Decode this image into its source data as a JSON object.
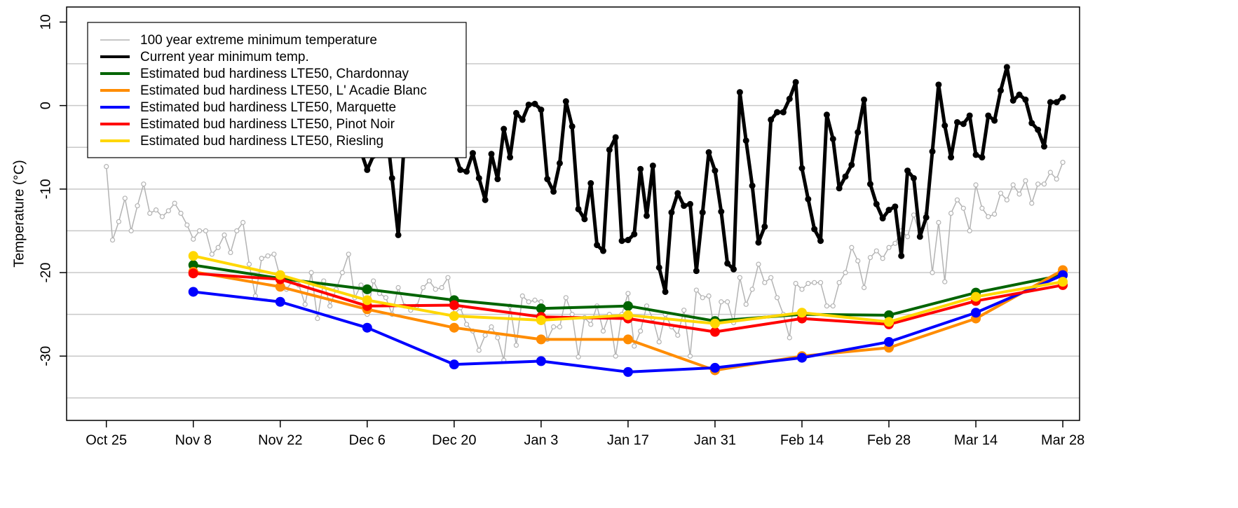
{
  "chart_data": {
    "type": "line",
    "y_label": "Temperature (°C)",
    "xlim": [
      -6.4,
      156.7
    ],
    "xticks": [
      {
        "value": 0,
        "label": "Oct 25"
      },
      {
        "value": 14,
        "label": "Nov 8"
      },
      {
        "value": 28,
        "label": "Nov 22"
      },
      {
        "value": 42,
        "label": "Dec 6"
      },
      {
        "value": 56,
        "label": "Dec 20"
      },
      {
        "value": 70,
        "label": "Jan 3"
      },
      {
        "value": 84,
        "label": "Jan 17"
      },
      {
        "value": 98,
        "label": "Jan 31"
      },
      {
        "value": 112,
        "label": "Feb 14"
      },
      {
        "value": 126,
        "label": "Feb 28"
      },
      {
        "value": 140,
        "label": "Mar 14"
      },
      {
        "value": 154,
        "label": "Mar 28"
      }
    ],
    "ylim": [
      -37.7,
      11.8
    ],
    "yticks": [
      10,
      0,
      -10,
      -20,
      -30
    ],
    "grid": true,
    "ygrid": [
      5,
      0,
      -5,
      -10,
      -15,
      -20,
      -25,
      -30,
      -35
    ],
    "legend": "topleft",
    "series": [
      {
        "name": "100 year extreme minimum temperature",
        "color": "#b3b3b3",
        "x": [
          0,
          1,
          2,
          3,
          4,
          5,
          6,
          7,
          8,
          9,
          10,
          11,
          12,
          13,
          14,
          15,
          16,
          17,
          18,
          19,
          20,
          21,
          22,
          23,
          24,
          25,
          26,
          27,
          28,
          29,
          30,
          31,
          32,
          33,
          34,
          35,
          36,
          37,
          38,
          39,
          40,
          41,
          42,
          43,
          44,
          45,
          46,
          47,
          48,
          49,
          50,
          51,
          52,
          53,
          54,
          55,
          56,
          57,
          58,
          59,
          60,
          61,
          62,
          63,
          64,
          65,
          66,
          67,
          68,
          69,
          70,
          71,
          72,
          73,
          74,
          75,
          76,
          77,
          78,
          79,
          80,
          81,
          82,
          83,
          84,
          85,
          86,
          87,
          88,
          89,
          90,
          91,
          92,
          93,
          94,
          95,
          96,
          97,
          98,
          99,
          100,
          101,
          102,
          103,
          104,
          105,
          106,
          107,
          108,
          109,
          110,
          111,
          112,
          113,
          114,
          115,
          116,
          117,
          118,
          119,
          120,
          121,
          122,
          123,
          124,
          125,
          126,
          127,
          128,
          129,
          130,
          131,
          132,
          133,
          134,
          135,
          136,
          137,
          138,
          139,
          140,
          141,
          142,
          143,
          144,
          145,
          146,
          147,
          148,
          149,
          150,
          151,
          152,
          153,
          154
        ],
        "values": [
          -7.3,
          -16.1,
          -13.9,
          -11.1,
          -15,
          -12,
          -9.4,
          -12.9,
          -12.5,
          -13.3,
          -12.6,
          -11.7,
          -12.9,
          -14.3,
          -16,
          -15,
          -15,
          -17.8,
          -17,
          -15.5,
          -17.6,
          -15,
          -14,
          -19,
          -22.8,
          -18.3,
          -18,
          -17.8,
          -20.6,
          -22,
          -21,
          -21.5,
          -23.8,
          -20,
          -25.5,
          -21,
          -24,
          -22,
          -20,
          -17.8,
          -23,
          -21.5,
          -25,
          -21,
          -22.5,
          -23,
          -25,
          -21.8,
          -24,
          -24.5,
          -24,
          -21.8,
          -21,
          -22,
          -21.8,
          -20.6,
          -25,
          -24.2,
          -26.2,
          -27,
          -29.3,
          -27.5,
          -26.5,
          -27.8,
          -30.5,
          -24,
          -28.7,
          -22.8,
          -23.5,
          -23.3,
          -23.5,
          -28,
          -26.5,
          -26.5,
          -23,
          -25,
          -30.1,
          -25.4,
          -26.2,
          -24,
          -27,
          -25,
          -30,
          -25,
          -22.5,
          -28.8,
          -27,
          -24,
          -25.5,
          -28.3,
          -25,
          -26.5,
          -27.5,
          -24.5,
          -30,
          -22.1,
          -23,
          -22.8,
          -27.3,
          -23.5,
          -23.5,
          -26,
          -20.6,
          -23.8,
          -22,
          -19,
          -21.2,
          -20.6,
          -23,
          -25,
          -27.8,
          -21.3,
          -22,
          -21.3,
          -21.2,
          -21.2,
          -24,
          -24,
          -21.2,
          -20,
          -17,
          -18.6,
          -21.8,
          -18.2,
          -17.4,
          -18.3,
          -17,
          -16.5,
          -15,
          -15.7,
          -13.1,
          -15.5,
          -13,
          -20,
          -14,
          -21.1,
          -12.9,
          -11.3,
          -12.3,
          -15,
          -9.5,
          -12.3,
          -13.3,
          -13,
          -10.5,
          -11.3,
          -9.5,
          -10.6,
          -9,
          -11.7,
          -9.4,
          -9.4,
          -8,
          -8.8,
          -6.8
        ]
      },
      {
        "name": "Current year minimum temp.",
        "color": "#000000",
        "x": [
          41,
          42,
          43,
          44,
          45,
          46,
          47,
          48,
          49,
          50,
          51,
          52,
          53,
          54,
          55,
          56,
          57,
          58,
          59,
          60,
          61,
          62,
          63,
          64,
          65,
          66,
          67,
          68,
          69,
          70,
          71,
          72,
          73,
          74,
          75,
          76,
          77,
          78,
          79,
          80,
          81,
          82,
          83,
          84,
          85,
          86,
          87,
          88,
          89,
          90,
          91,
          92,
          93,
          94,
          95,
          96,
          97,
          98,
          99,
          100,
          101,
          102,
          103,
          104,
          105,
          106,
          107,
          108,
          109,
          110,
          111,
          112,
          113,
          114,
          115,
          116,
          117,
          118,
          119,
          120,
          121,
          122,
          123,
          124,
          125,
          126,
          127,
          128,
          129,
          130,
          131,
          132,
          133,
          134,
          135,
          136,
          137,
          138,
          139,
          140,
          141,
          142,
          143,
          144,
          145,
          146,
          147,
          148,
          149,
          150,
          151,
          152,
          153,
          154
        ],
        "values": [
          -5.5,
          -7.7,
          -6,
          -4.5,
          -2,
          -8.7,
          -15.5,
          -4,
          -1,
          -1,
          -2,
          -1,
          -2,
          -3,
          -4,
          -5.5,
          -7.7,
          -7.9,
          -5.7,
          -8.7,
          -11.3,
          -5.8,
          -8.8,
          -2.8,
          -6.2,
          -0.9,
          -1.7,
          0.1,
          0.2,
          -0.5,
          -8.8,
          -10.3,
          -6.9,
          0.5,
          -2.5,
          -12.4,
          -13.6,
          -9.3,
          -16.7,
          -17.4,
          -5.3,
          -3.8,
          -16.2,
          -16.1,
          -15.4,
          -7.6,
          -13.2,
          -7.2,
          -19.4,
          -22.3,
          -12.8,
          -10.5,
          -12,
          -11.8,
          -19.8,
          -12.8,
          -5.6,
          -7.8,
          -12.7,
          -18.9,
          -19.6,
          1.6,
          -4.2,
          -9.6,
          -16.4,
          -14.5,
          -1.7,
          -0.8,
          -0.8,
          0.8,
          2.8,
          -7.5,
          -11.2,
          -14.8,
          -16.2,
          -1.1,
          -4,
          -9.9,
          -8.5,
          -7.1,
          -3.2,
          0.7,
          -9.4,
          -11.8,
          -13.5,
          -12.5,
          -12.1,
          -18,
          -7.8,
          -8.7,
          -15.7,
          -13.4,
          -5.5,
          2.5,
          -2.4,
          -6.2,
          -2,
          -2.2,
          -1.2,
          -5.9,
          -6.2,
          -1.2,
          -1.8,
          1.8,
          4.6,
          0.6,
          1.3,
          0.7,
          -2.1,
          -2.9,
          -4.9,
          0.4,
          0.4,
          1
        ]
      },
      {
        "name": "Estimated bud hardiness LTE50, Chardonnay",
        "color": "#006400",
        "x": [
          14,
          28,
          42,
          56,
          70,
          84,
          98,
          112,
          126,
          140,
          154
        ],
        "values": [
          -19.1,
          -20.7,
          -22.0,
          -23.3,
          -24.3,
          -24.0,
          -25.8,
          -25.0,
          -25.1,
          -22.4,
          -20.3
        ]
      },
      {
        "name": "Estimated bud hardiness LTE50, L' Acadie Blanc",
        "color": "#ff8c00",
        "x": [
          14,
          28,
          42,
          56,
          70,
          84,
          98,
          112,
          126,
          140,
          154
        ],
        "values": [
          -19.9,
          -21.7,
          -24.4,
          -26.6,
          -28.0,
          -28.0,
          -31.7,
          -30.0,
          -29.0,
          -25.5,
          -19.7
        ]
      },
      {
        "name": "Estimated bud hardiness LTE50, Marquette",
        "color": "#0000ff",
        "x": [
          14,
          28,
          42,
          56,
          70,
          84,
          98,
          112,
          126,
          140,
          154
        ],
        "values": [
          -22.3,
          -23.5,
          -26.6,
          -31.0,
          -30.6,
          -31.9,
          -31.4,
          -30.2,
          -28.3,
          -24.8,
          -20.3
        ]
      },
      {
        "name": "Estimated bud hardiness LTE50, Pinot Noir",
        "color": "#ff0000",
        "x": [
          14,
          28,
          42,
          56,
          70,
          84,
          98,
          112,
          126,
          140,
          154
        ],
        "values": [
          -20.1,
          -20.8,
          -24.0,
          -23.9,
          -25.3,
          -25.5,
          -27.1,
          -25.5,
          -26.2,
          -23.4,
          -21.5
        ]
      },
      {
        "name": "Estimated bud hardiness LTE50, Riesling",
        "color": "#ffd700",
        "x": [
          14,
          28,
          42,
          56,
          70,
          84,
          98,
          112,
          126,
          140,
          154
        ],
        "values": [
          -18.0,
          -20.3,
          -23.3,
          -25.2,
          -25.7,
          -25.1,
          -26.1,
          -24.8,
          -25.9,
          -22.9,
          -21.1
        ]
      }
    ]
  }
}
